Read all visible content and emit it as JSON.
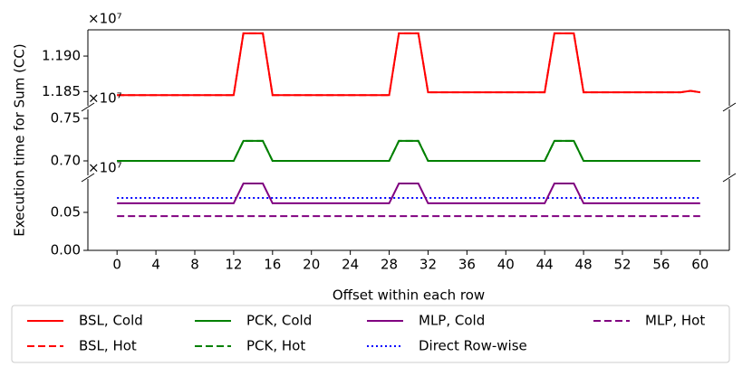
{
  "chart_data": [
    {
      "type": "line",
      "ylabel": "Execution time for Sum (CC)",
      "offset_text": "×10⁷",
      "ylim": [
        1.183,
        1.1937
      ],
      "yticks": [
        {
          "value": 1.185,
          "label": "1.185"
        },
        {
          "value": 1.19,
          "label": "1.190"
        }
      ],
      "series": [
        {
          "name": "BSL, Cold",
          "color": "#ff0000",
          "dash": "solid",
          "values": [
            1.1845,
            1.1845,
            1.1845,
            1.1845,
            1.1845,
            1.1845,
            1.1845,
            1.1845,
            1.1845,
            1.1845,
            1.1845,
            1.1845,
            1.1845,
            1.1932,
            1.1932,
            1.1932,
            1.1845,
            1.1845,
            1.1845,
            1.1845,
            1.1845,
            1.1845,
            1.1845,
            1.1845,
            1.1845,
            1.1845,
            1.1845,
            1.1845,
            1.1845,
            1.1932,
            1.1932,
            1.1932,
            1.1849,
            1.1849,
            1.1849,
            1.1849,
            1.1849,
            1.1849,
            1.1849,
            1.1849,
            1.1849,
            1.1849,
            1.1849,
            1.1849,
            1.1849,
            1.1932,
            1.1932,
            1.1932,
            1.1849,
            1.1849,
            1.1849,
            1.1849,
            1.1849,
            1.1849,
            1.1849,
            1.1849,
            1.1849,
            1.1849,
            1.1849,
            1.1851,
            1.1849
          ]
        },
        {
          "name": "BSL, Hot",
          "color": "#ff0000",
          "dash": "dashed",
          "values": [
            1.1845,
            1.1845,
            1.1845,
            1.1845,
            1.1845,
            1.1845,
            1.1845,
            1.1845,
            1.1845,
            1.1845,
            1.1845,
            1.1845,
            1.1845,
            1.1932,
            1.1932,
            1.1932,
            1.1845,
            1.1845,
            1.1845,
            1.1845,
            1.1845,
            1.1845,
            1.1845,
            1.1845,
            1.1845,
            1.1845,
            1.1845,
            1.1845,
            1.1845,
            1.1932,
            1.1932,
            1.1932,
            1.1849,
            1.1849,
            1.1849,
            1.1849,
            1.1849,
            1.1849,
            1.1849,
            1.1849,
            1.1849,
            1.1849,
            1.1849,
            1.1849,
            1.1849,
            1.1932,
            1.1932,
            1.1932,
            1.1849,
            1.1849,
            1.1849,
            1.1849,
            1.1849,
            1.1849,
            1.1849,
            1.1849,
            1.1849,
            1.1849,
            1.1849,
            1.1851,
            1.1849
          ]
        }
      ]
    },
    {
      "type": "line",
      "offset_text": "×10⁷",
      "ylim": [
        0.683,
        0.7606
      ],
      "yticks": [
        {
          "value": 0.7,
          "label": "0.70"
        },
        0.75
      ],
      "series": [
        {
          "name": "PCK, Cold",
          "color": "#008000",
          "dash": "solid",
          "values": [
            0.7,
            0.7,
            0.7,
            0.7,
            0.7,
            0.7,
            0.7,
            0.7,
            0.7,
            0.7,
            0.7,
            0.7,
            0.7,
            0.7235,
            0.7235,
            0.7235,
            0.7,
            0.7,
            0.7,
            0.7,
            0.7,
            0.7,
            0.7,
            0.7,
            0.7,
            0.7,
            0.7,
            0.7,
            0.7,
            0.7235,
            0.7235,
            0.7235,
            0.7,
            0.7,
            0.7,
            0.7,
            0.7,
            0.7,
            0.7,
            0.7,
            0.7,
            0.7,
            0.7,
            0.7,
            0.7,
            0.7235,
            0.7235,
            0.7235,
            0.7,
            0.7,
            0.7,
            0.7,
            0.7,
            0.7,
            0.7,
            0.7,
            0.7,
            0.7,
            0.7,
            0.7,
            0.7
          ]
        },
        {
          "name": "PCK, Hot",
          "color": "#008000",
          "dash": "dashed",
          "values": [
            0.7,
            0.7,
            0.7,
            0.7,
            0.7,
            0.7,
            0.7,
            0.7,
            0.7,
            0.7,
            0.7,
            0.7,
            0.7,
            0.7235,
            0.7235,
            0.7235,
            0.7,
            0.7,
            0.7,
            0.7,
            0.7,
            0.7,
            0.7,
            0.7,
            0.7,
            0.7,
            0.7,
            0.7,
            0.7,
            0.7235,
            0.7235,
            0.7235,
            0.7,
            0.7,
            0.7,
            0.7,
            0.7,
            0.7,
            0.7,
            0.7,
            0.7,
            0.7,
            0.7,
            0.7,
            0.7,
            0.7235,
            0.7235,
            0.7235,
            0.7,
            0.7,
            0.7,
            0.7,
            0.7,
            0.7,
            0.7,
            0.7,
            0.7,
            0.7,
            0.7,
            0.7,
            0.7
          ]
        }
      ]
    },
    {
      "type": "line",
      "offset_text": "×10⁷",
      "xlabel": "Offset within each row",
      "x": [
        0,
        1,
        2,
        3,
        4,
        5,
        6,
        7,
        8,
        9,
        10,
        11,
        12,
        13,
        14,
        15,
        16,
        17,
        18,
        19,
        20,
        21,
        22,
        23,
        24,
        25,
        26,
        27,
        28,
        29,
        30,
        31,
        32,
        33,
        34,
        35,
        36,
        37,
        38,
        39,
        40,
        41,
        42,
        43,
        44,
        45,
        46,
        47,
        48,
        49,
        50,
        51,
        52,
        53,
        54,
        55,
        56,
        57,
        58,
        59,
        60
      ],
      "xlim": [
        -3,
        63
      ],
      "xticks": [
        0,
        4,
        8,
        12,
        16,
        20,
        24,
        28,
        32,
        36,
        40,
        44,
        48,
        52,
        56,
        60
      ],
      "ylim": [
        0,
        0.094
      ],
      "yticks": [
        {
          "value": 0,
          "label": "0.00"
        },
        0.05
      ],
      "series": [
        {
          "name": "MLP, Cold",
          "color": "#800080",
          "dash": "solid",
          "values": [
            0.062,
            0.062,
            0.062,
            0.062,
            0.062,
            0.062,
            0.062,
            0.062,
            0.062,
            0.062,
            0.062,
            0.062,
            0.062,
            0.088,
            0.088,
            0.088,
            0.062,
            0.062,
            0.062,
            0.062,
            0.062,
            0.062,
            0.062,
            0.062,
            0.062,
            0.062,
            0.062,
            0.062,
            0.062,
            0.088,
            0.088,
            0.088,
            0.062,
            0.062,
            0.062,
            0.062,
            0.062,
            0.062,
            0.062,
            0.062,
            0.062,
            0.062,
            0.062,
            0.062,
            0.062,
            0.088,
            0.088,
            0.088,
            0.062,
            0.062,
            0.062,
            0.062,
            0.062,
            0.062,
            0.062,
            0.062,
            0.062,
            0.062,
            0.062,
            0.062,
            0.062
          ]
        },
        {
          "name": "Direct Row-wise",
          "color": "#0000ff",
          "dash": "dotted",
          "values": [
            0.069,
            0.069,
            0.069,
            0.069,
            0.069,
            0.069,
            0.069,
            0.069,
            0.069,
            0.069,
            0.069,
            0.069,
            0.069,
            0.069,
            0.069,
            0.069,
            0.069,
            0.069,
            0.069,
            0.069,
            0.069,
            0.069,
            0.069,
            0.069,
            0.069,
            0.069,
            0.069,
            0.069,
            0.069,
            0.069,
            0.069,
            0.069,
            0.069,
            0.069,
            0.069,
            0.069,
            0.069,
            0.069,
            0.069,
            0.069,
            0.069,
            0.069,
            0.069,
            0.069,
            0.069,
            0.069,
            0.069,
            0.069,
            0.069,
            0.069,
            0.069,
            0.069,
            0.069,
            0.069,
            0.069,
            0.069,
            0.069,
            0.069,
            0.069,
            0.069,
            0.069
          ]
        },
        {
          "name": "MLP, Hot",
          "color": "#800080",
          "dash": "dashed",
          "values": [
            0.045,
            0.045,
            0.045,
            0.045,
            0.045,
            0.045,
            0.045,
            0.045,
            0.045,
            0.045,
            0.045,
            0.045,
            0.045,
            0.045,
            0.045,
            0.045,
            0.045,
            0.045,
            0.045,
            0.045,
            0.045,
            0.045,
            0.045,
            0.045,
            0.045,
            0.045,
            0.045,
            0.045,
            0.045,
            0.045,
            0.045,
            0.045,
            0.045,
            0.045,
            0.045,
            0.045,
            0.045,
            0.045,
            0.045,
            0.045,
            0.045,
            0.045,
            0.045,
            0.045,
            0.045,
            0.045,
            0.045,
            0.045,
            0.045,
            0.045,
            0.045,
            0.045,
            0.045,
            0.045,
            0.045,
            0.045,
            0.045,
            0.045,
            0.045,
            0.045,
            0.045
          ]
        }
      ]
    }
  ]
}
